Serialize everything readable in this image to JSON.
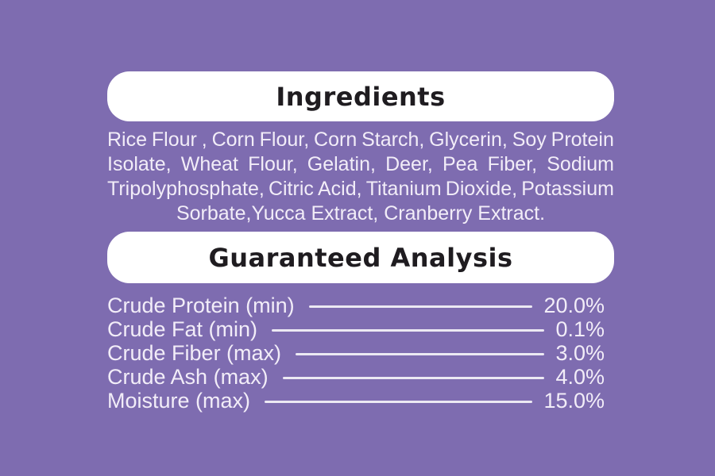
{
  "theme": {
    "background_color": "#7e6cb0",
    "panel_color": "#ffffff",
    "heading_text_color": "#1f1c20",
    "body_text_color": "#f2edf8"
  },
  "ingredients": {
    "heading": "Ingredients",
    "lines": [
      "Rice Flour , Corn Flour, Corn Starch, Glycerin, Soy Protein",
      "Isolate, Wheat Flour, Gelatin, Deer, Pea Fiber, Sodium",
      "Tripolyphosphate, Citric Acid, Titanium Dioxide, Potassium",
      "Sorbate,Yucca Extract, Cranberry Extract."
    ]
  },
  "guaranteed_analysis": {
    "heading": "Guaranteed Analysis",
    "rows": [
      {
        "label": "Crude Protein (min)",
        "value": "20.0%"
      },
      {
        "label": "Crude Fat (min)",
        "value": "0.1%"
      },
      {
        "label": "Crude Fiber (max)",
        "value": "3.0%"
      },
      {
        "label": "Crude Ash (max)",
        "value": "4.0%"
      },
      {
        "label": "Moisture (max)",
        "value": "15.0%"
      }
    ]
  }
}
